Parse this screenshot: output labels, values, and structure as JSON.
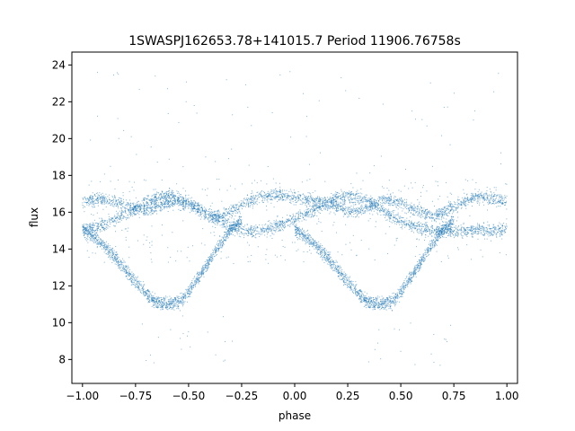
{
  "chart_data": {
    "type": "scatter",
    "title": "1SWASPJ162653.78+141015.7 Period 11906.76758s",
    "xlabel": "phase",
    "ylabel": "flux",
    "xlim": [
      -1.05,
      1.05
    ],
    "ylim": [
      6.7,
      24.7
    ],
    "x_ticks": [
      -1.0,
      -0.75,
      -0.5,
      -0.25,
      0.0,
      0.25,
      0.5,
      0.75,
      1.0
    ],
    "x_tick_labels": [
      "−1.00",
      "−0.75",
      "−0.50",
      "−0.25",
      "0.00",
      "0.25",
      "0.50",
      "0.75",
      "1.00"
    ],
    "y_ticks": [
      8,
      10,
      12,
      14,
      16,
      18,
      20,
      22,
      24
    ],
    "y_tick_labels": [
      "8",
      "10",
      "12",
      "14",
      "16",
      "18",
      "20",
      "22",
      "24"
    ],
    "grid": false,
    "legend": "none",
    "marker_color": "#1f77b4",
    "series": [
      {
        "points_x": [
          -0.975,
          -0.9,
          -0.85,
          -0.8,
          -0.75,
          -0.7,
          -0.65,
          -0.6,
          -0.55,
          -0.5,
          -0.45,
          -0.4,
          -0.35,
          -0.3,
          -0.25,
          -0.2,
          -0.15,
          -0.1,
          -0.05,
          0.0,
          0.05,
          0.1,
          0.15,
          0.2,
          0.25,
          0.3,
          0.35,
          0.4,
          0.45,
          0.5,
          0.55,
          0.6,
          0.65,
          0.7,
          0.75,
          0.8,
          0.85,
          0.9,
          0.95,
          1.0
        ],
        "band_upper": [
          16.6,
          16.7,
          16.6,
          16.4,
          16.2,
          16.1,
          16.3,
          16.5,
          16.6,
          16.4,
          16.1,
          15.7,
          15.8,
          16.1,
          16.4,
          16.7,
          16.9,
          17.0,
          16.9,
          16.8,
          16.7,
          16.6,
          16.5,
          16.3,
          16.1,
          16.1,
          16.3,
          16.6,
          16.7,
          16.5,
          16.2,
          16.0,
          15.8,
          16.0,
          16.3,
          16.6,
          16.8,
          16.8,
          16.7,
          16.6
        ],
        "band_lower": [
          15.1,
          15.3,
          15.6,
          15.9,
          16.2,
          16.5,
          16.8,
          16.9,
          16.8,
          16.5,
          16.2,
          15.9,
          15.5,
          15.2,
          15.0,
          14.9,
          15.0,
          15.2,
          15.4,
          15.6,
          15.9,
          16.2,
          16.5,
          16.8,
          16.9,
          16.8,
          16.6,
          16.2,
          15.8,
          15.5,
          15.3,
          15.1,
          15.0,
          15.0,
          15.0,
          15.0,
          15.0,
          15.0,
          15.0,
          15.1
        ],
        "eclipse_branch_x": [
          -1.0,
          -0.95,
          -0.9,
          -0.85,
          -0.8,
          -0.75,
          -0.7,
          -0.675,
          -0.65,
          -0.6,
          -0.55,
          -0.525,
          -0.5,
          -0.45,
          -0.4,
          -0.35,
          -0.3,
          -0.25
        ],
        "eclipse_branch_y": [
          15.1,
          14.7,
          14.2,
          13.6,
          12.9,
          12.2,
          11.6,
          11.3,
          11.1,
          11.0,
          11.1,
          11.3,
          11.7,
          12.5,
          13.4,
          14.3,
          15.1,
          15.6
        ]
      }
    ]
  }
}
